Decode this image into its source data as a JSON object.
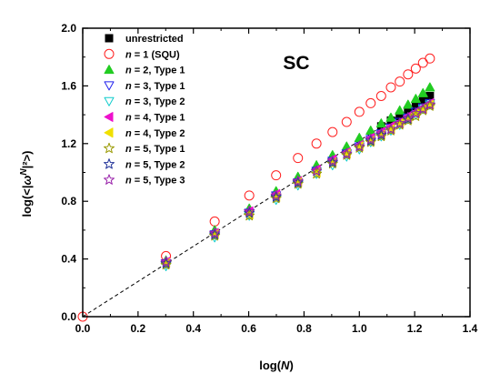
{
  "chart_data": {
    "type": "scatter",
    "panel_label": "SC",
    "xlabel": "log(N)",
    "ylabel": "log(<|ω^N|²>)",
    "xlim": [
      0.0,
      1.4
    ],
    "ylim": [
      0.0,
      2.0
    ],
    "xticks": [
      "0.0",
      "0.2",
      "0.4",
      "0.6",
      "0.8",
      "1.0",
      "1.2",
      "1.4"
    ],
    "yticks": [
      "0.0",
      "0.4",
      "0.8",
      "1.2",
      "1.6",
      "2.0"
    ],
    "grid": false,
    "legend_position": "top-left",
    "reference_line": {
      "style": "dashed",
      "color": "#000000",
      "x": [
        0.0,
        1.25
      ],
      "y": [
        0.0,
        1.525
      ]
    },
    "x": [
      0.0,
      0.301,
      0.477,
      0.602,
      0.699,
      0.778,
      0.845,
      0.903,
      0.954,
      1.0,
      1.041,
      1.079,
      1.114,
      1.146,
      1.176,
      1.204,
      1.23,
      1.255
    ],
    "series": [
      {
        "name": "unrestricted",
        "n": "",
        "rest": "unrestricted",
        "marker": "square",
        "color": "#000000",
        "fill": true,
        "indices": [
          11,
          12,
          13,
          14,
          15,
          16,
          17
        ],
        "values": [
          1.32,
          1.36,
          1.39,
          1.43,
          1.46,
          1.5,
          1.53
        ]
      },
      {
        "name": "n = 1 (SQU)",
        "n": "n",
        "rest": " = 1 (SQU)",
        "marker": "circle",
        "color": "#ff2020",
        "fill": false,
        "indices": [
          0,
          1,
          2,
          3,
          4,
          5,
          6,
          7,
          8,
          9,
          10,
          11,
          12,
          13,
          14,
          15,
          16,
          17
        ],
        "values": [
          0.0,
          0.42,
          0.66,
          0.84,
          0.98,
          1.1,
          1.2,
          1.28,
          1.35,
          1.42,
          1.48,
          1.53,
          1.59,
          1.63,
          1.68,
          1.72,
          1.76,
          1.79
        ]
      },
      {
        "name": "n = 2, Type 1",
        "n": "n",
        "rest": " = 2, Type 1",
        "marker": "triangle-up",
        "color": "#22cc22",
        "fill": true,
        "indices": [
          1,
          2,
          3,
          4,
          5,
          6,
          7,
          8,
          9,
          10,
          11,
          12,
          13,
          14,
          15,
          16,
          17
        ],
        "values": [
          0.39,
          0.6,
          0.75,
          0.87,
          0.97,
          1.05,
          1.12,
          1.18,
          1.24,
          1.29,
          1.34,
          1.38,
          1.43,
          1.47,
          1.51,
          1.55,
          1.59
        ]
      },
      {
        "name": "n = 3, Type 1",
        "n": "n",
        "rest": " = 3, Type 1",
        "marker": "triangle-down",
        "color": "#2222ee",
        "fill": false,
        "indices": [
          1,
          2,
          3,
          4,
          5,
          6,
          7,
          8,
          9,
          10,
          11,
          12,
          13,
          14,
          15,
          16,
          17
        ],
        "values": [
          0.37,
          0.57,
          0.72,
          0.84,
          0.93,
          1.01,
          1.08,
          1.13,
          1.18,
          1.23,
          1.27,
          1.31,
          1.35,
          1.38,
          1.42,
          1.45,
          1.48
        ]
      },
      {
        "name": "n = 3, Type 2",
        "n": "n",
        "rest": " = 3, Type 2",
        "marker": "triangle-down",
        "color": "#11cccc",
        "fill": false,
        "indices": [
          1,
          2,
          3,
          4,
          5,
          6,
          7,
          8,
          9,
          10,
          11,
          12,
          13,
          14,
          15,
          16,
          17
        ],
        "values": [
          0.35,
          0.55,
          0.7,
          0.81,
          0.91,
          0.99,
          1.05,
          1.11,
          1.16,
          1.21,
          1.25,
          1.29,
          1.33,
          1.37,
          1.4,
          1.44,
          1.47
        ]
      },
      {
        "name": "n = 4, Type 1",
        "n": "n",
        "rest": " = 4, Type 1",
        "marker": "triangle-left",
        "color": "#ee11cc",
        "fill": true,
        "indices": [
          1,
          2,
          3,
          4,
          5,
          6,
          7,
          8,
          9,
          10,
          11,
          12,
          13,
          14,
          15,
          16,
          17
        ],
        "values": [
          0.38,
          0.58,
          0.73,
          0.85,
          0.94,
          1.02,
          1.09,
          1.14,
          1.19,
          1.24,
          1.28,
          1.32,
          1.35,
          1.39,
          1.42,
          1.45,
          1.48
        ]
      },
      {
        "name": "n = 4, Type 2",
        "n": "n",
        "rest": " = 4, Type 2",
        "marker": "triangle-left",
        "color": "#f0e000",
        "fill": true,
        "indices": [
          1,
          2,
          3,
          4,
          5,
          6,
          7,
          8,
          9,
          10,
          11,
          12,
          13,
          14,
          15,
          16,
          17
        ],
        "values": [
          0.37,
          0.57,
          0.71,
          0.83,
          0.93,
          1.0,
          1.07,
          1.13,
          1.18,
          1.22,
          1.26,
          1.3,
          1.34,
          1.37,
          1.41,
          1.44,
          1.47
        ]
      },
      {
        "name": "n = 5, Type 1",
        "n": "n",
        "rest": " = 5, Type 1",
        "marker": "star",
        "color": "#999900",
        "fill": false,
        "indices": [
          1,
          2,
          3,
          4,
          5,
          6,
          7,
          8,
          9,
          10,
          11,
          12,
          13,
          14,
          15,
          16,
          17
        ],
        "values": [
          0.36,
          0.56,
          0.7,
          0.82,
          0.92,
          0.99,
          1.06,
          1.12,
          1.17,
          1.21,
          1.25,
          1.29,
          1.33,
          1.36,
          1.39,
          1.43,
          1.46
        ]
      },
      {
        "name": "n = 5, Type 2",
        "n": "n",
        "rest": " = 5, Type 2",
        "marker": "star",
        "color": "#223399",
        "fill": false,
        "indices": [
          1,
          2,
          3,
          4,
          5,
          6,
          7,
          8,
          9,
          10,
          11,
          12,
          13,
          14,
          15,
          16,
          17
        ],
        "values": [
          0.37,
          0.57,
          0.72,
          0.83,
          0.93,
          1.01,
          1.07,
          1.13,
          1.18,
          1.22,
          1.26,
          1.3,
          1.34,
          1.37,
          1.41,
          1.44,
          1.47
        ]
      },
      {
        "name": "n = 5, Type 3",
        "n": "n",
        "rest": " = 5, Type 3",
        "marker": "star",
        "color": "#9922aa",
        "fill": false,
        "indices": [
          1,
          2,
          3,
          4,
          5,
          6,
          7,
          8,
          9,
          10,
          11,
          12,
          13,
          14,
          15,
          16,
          17
        ],
        "values": [
          0.38,
          0.58,
          0.73,
          0.84,
          0.94,
          1.01,
          1.08,
          1.13,
          1.18,
          1.23,
          1.27,
          1.3,
          1.34,
          1.38,
          1.41,
          1.44,
          1.47
        ]
      }
    ]
  }
}
